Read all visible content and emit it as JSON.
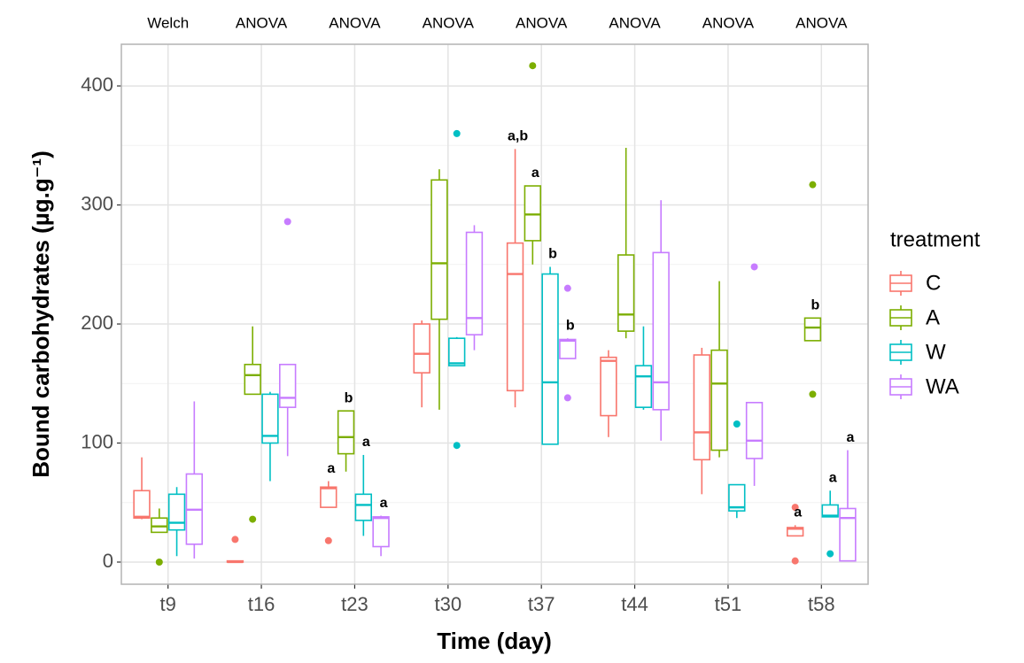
{
  "chart_data": {
    "type": "boxplot",
    "xlabel": "Time (day)",
    "ylabel": "Bound carbohydrates (µg.g⁻¹)",
    "legend_title": "treatment",
    "legend": "right",
    "grid": true,
    "categories": [
      "t9",
      "t16",
      "t23",
      "t30",
      "t37",
      "t44",
      "t51",
      "t58"
    ],
    "tests": [
      "Welch",
      "ANOVA",
      "ANOVA",
      "ANOVA",
      "ANOVA",
      "ANOVA",
      "ANOVA",
      "ANOVA"
    ],
    "ylim": [
      -18.6,
      435
    ],
    "yticks": [
      0,
      100,
      200,
      300,
      400
    ],
    "series": [
      {
        "name": "C",
        "color": "#F8766D",
        "boxes": [
          {
            "min": 36,
            "q1": 37,
            "median": 38,
            "q3": 60,
            "max": 88,
            "outliers": []
          },
          {
            "min": 0,
            "q1": 0,
            "median": 0,
            "q3": 1,
            "max": 1,
            "outliers": [
              19
            ]
          },
          {
            "min": 46,
            "q1": 46,
            "median": 62,
            "q3": 63,
            "max": 68,
            "outliers": [
              18
            ]
          },
          {
            "min": 130,
            "q1": 159,
            "median": 175,
            "q3": 200,
            "max": 203,
            "outliers": []
          },
          {
            "min": 130,
            "q1": 144,
            "median": 242,
            "q3": 268,
            "max": 347,
            "outliers": []
          },
          {
            "min": 105,
            "q1": 123,
            "median": 169,
            "q3": 172,
            "max": 178,
            "outliers": []
          },
          {
            "min": 57,
            "q1": 86,
            "median": 109,
            "q3": 174,
            "max": 180,
            "outliers": []
          },
          {
            "min": 22,
            "q1": 22,
            "median": 28,
            "q3": 29,
            "max": 31,
            "outliers": [
              46,
              1
            ]
          }
        ],
        "letters": [
          null,
          null,
          "a",
          null,
          "a,b",
          null,
          null,
          "a"
        ]
      },
      {
        "name": "A",
        "color": "#7CAE00",
        "boxes": [
          {
            "min": 25,
            "q1": 25,
            "median": 30,
            "q3": 37,
            "max": 45,
            "outliers": [
              0
            ]
          },
          {
            "min": 141,
            "q1": 141,
            "median": 157,
            "q3": 166,
            "max": 198,
            "outliers": [
              36
            ]
          },
          {
            "min": 76,
            "q1": 91,
            "median": 105,
            "q3": 127,
            "max": 127,
            "outliers": []
          },
          {
            "min": 128,
            "q1": 204,
            "median": 251,
            "q3": 321,
            "max": 330,
            "outliers": []
          },
          {
            "min": 250,
            "q1": 270,
            "median": 292,
            "q3": 316,
            "max": 316,
            "outliers": [
              417
            ]
          },
          {
            "min": 188,
            "q1": 194,
            "median": 208,
            "q3": 258,
            "max": 348,
            "outliers": []
          },
          {
            "min": 88,
            "q1": 94,
            "median": 150,
            "q3": 178,
            "max": 236,
            "outliers": []
          },
          {
            "min": 186,
            "q1": 186,
            "median": 197,
            "q3": 205,
            "max": 205,
            "outliers": [
              317,
              141
            ]
          }
        ],
        "letters": [
          null,
          null,
          "b",
          null,
          "a",
          null,
          null,
          "b"
        ]
      },
      {
        "name": "W",
        "color": "#00BFC4",
        "boxes": [
          {
            "min": 5,
            "q1": 27,
            "median": 33,
            "q3": 57,
            "max": 63,
            "outliers": []
          },
          {
            "min": 68,
            "q1": 100,
            "median": 106,
            "q3": 141,
            "max": 143,
            "outliers": []
          },
          {
            "min": 22,
            "q1": 35,
            "median": 48,
            "q3": 57,
            "max": 90,
            "outliers": []
          },
          {
            "min": 165,
            "q1": 165,
            "median": 167,
            "q3": 188,
            "max": 189,
            "outliers": [
              360,
              98
            ]
          },
          {
            "min": 99,
            "q1": 99,
            "median": 151,
            "q3": 242,
            "max": 248,
            "outliers": []
          },
          {
            "min": 128,
            "q1": 130,
            "median": 156,
            "q3": 165,
            "max": 198,
            "outliers": []
          },
          {
            "min": 37,
            "q1": 43,
            "median": 46,
            "q3": 65,
            "max": 65,
            "outliers": [
              116
            ]
          },
          {
            "min": 38,
            "q1": 38,
            "median": 39,
            "q3": 48,
            "max": 60,
            "outliers": [
              7
            ]
          }
        ],
        "letters": [
          null,
          null,
          "a",
          null,
          "b",
          null,
          null,
          "a"
        ]
      },
      {
        "name": "WA",
        "color": "#C77CFF",
        "boxes": [
          {
            "min": 3,
            "q1": 15,
            "median": 44,
            "q3": 74,
            "max": 135,
            "outliers": []
          },
          {
            "min": 89,
            "q1": 130,
            "median": 138,
            "q3": 166,
            "max": 166,
            "outliers": [
              286
            ]
          },
          {
            "min": 5,
            "q1": 13,
            "median": 37,
            "q3": 38,
            "max": 39,
            "outliers": []
          },
          {
            "min": 178,
            "q1": 191,
            "median": 205,
            "q3": 277,
            "max": 283,
            "outliers": []
          },
          {
            "min": 171,
            "q1": 171,
            "median": 186,
            "q3": 187,
            "max": 188,
            "outliers": [
              230,
              138
            ]
          },
          {
            "min": 102,
            "q1": 128,
            "median": 151,
            "q3": 260,
            "max": 304,
            "outliers": []
          },
          {
            "min": 64,
            "q1": 87,
            "median": 102,
            "q3": 134,
            "max": 134,
            "outliers": [
              248
            ]
          },
          {
            "min": 1,
            "q1": 1,
            "median": 37,
            "q3": 45,
            "max": 94,
            "outliers": []
          }
        ],
        "letters": [
          null,
          null,
          "a",
          null,
          "b",
          null,
          null,
          "a"
        ]
      }
    ]
  }
}
